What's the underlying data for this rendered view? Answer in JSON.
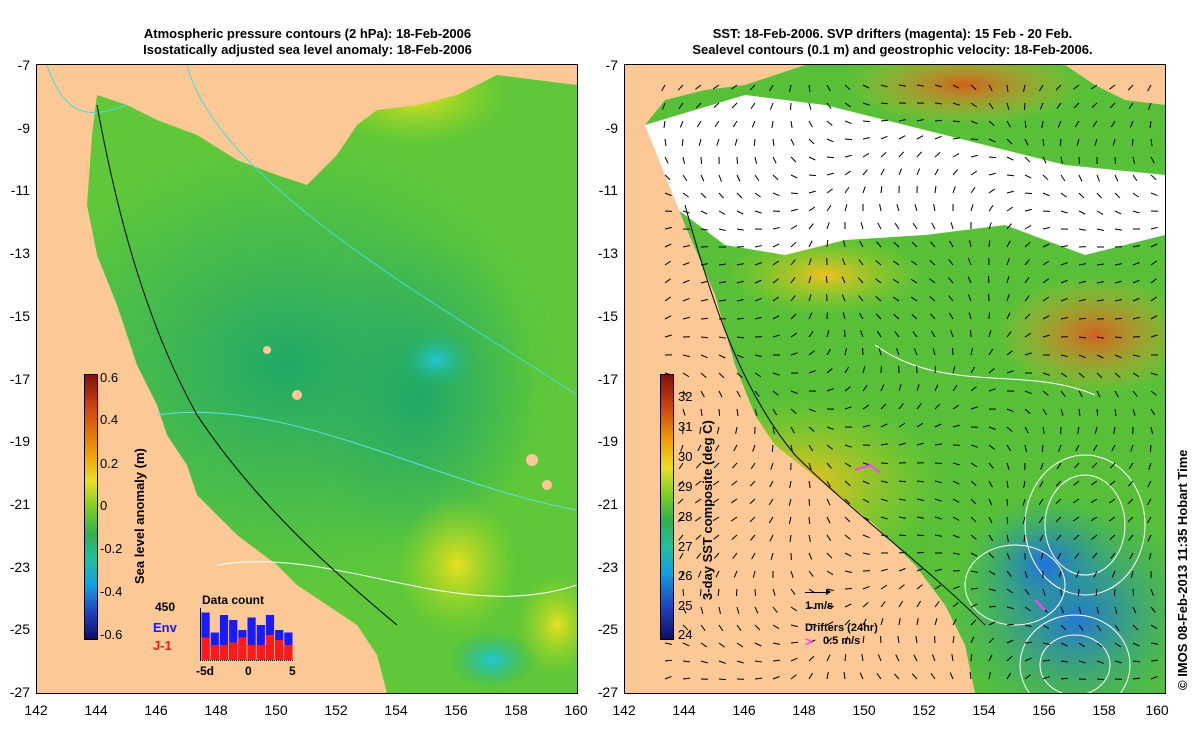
{
  "left_panel": {
    "title_line1": "Atmospheric pressure contours (2 hPa): 18-Feb-2006",
    "title_line2": "Isostatically adjusted sea level anomaly: 18-Feb-2006",
    "colorbar": {
      "label": "Sea level anomaly (m)",
      "ticks": [
        "0.6",
        "0.4",
        "0.2",
        "0",
        "-0.2",
        "-0.4",
        "-0.6"
      ]
    },
    "data_count": {
      "title": "Data count",
      "max_label": "450",
      "env_label": "Env",
      "j1_label": "J-1",
      "x_ticks": [
        "-5d",
        "0",
        "5"
      ],
      "env_color": "#1a1aff",
      "j1_color": "#ff1a1a",
      "env_values": [
        0.95,
        0.55,
        0.9,
        0.8,
        0.6,
        0.85,
        0.7,
        0.9,
        0.6,
        0.55
      ],
      "j1_values": [
        0.45,
        0.3,
        0.3,
        0.35,
        0.45,
        0.3,
        0.3,
        0.5,
        0.4,
        0.3
      ]
    }
  },
  "right_panel": {
    "title_line1": "SST: 18-Feb-2006. SVP drifters (magenta): 15 Feb - 20 Feb.",
    "title_line2": "Sealevel contours (0.1 m) and geostrophic velocity: 18-Feb-2006.",
    "colorbar": {
      "label": "3-day SST composite (deg C)",
      "ticks": [
        "32",
        "31",
        "30",
        "29",
        "28",
        "27",
        "26",
        "25",
        "24"
      ]
    },
    "vector_scale_label": "1 m/s",
    "drifters_label": "Drifters (24hr)",
    "drifter_scale_label": "0.5 m/s",
    "drifter_color": "#ff40ff"
  },
  "axes": {
    "y_ticks": [
      "-7",
      "-9",
      "-11",
      "-13",
      "-15",
      "-17",
      "-19",
      "-21",
      "-23",
      "-25",
      "-27"
    ],
    "x_ticks": [
      "142",
      "144",
      "146",
      "148",
      "150",
      "152",
      "154",
      "156",
      "158",
      "160"
    ]
  },
  "credit": "© IMOS 08-Feb-2013 11:35 Hobart Time",
  "colors": {
    "land": "#fcc896",
    "sst_missing": "#ffffff"
  }
}
